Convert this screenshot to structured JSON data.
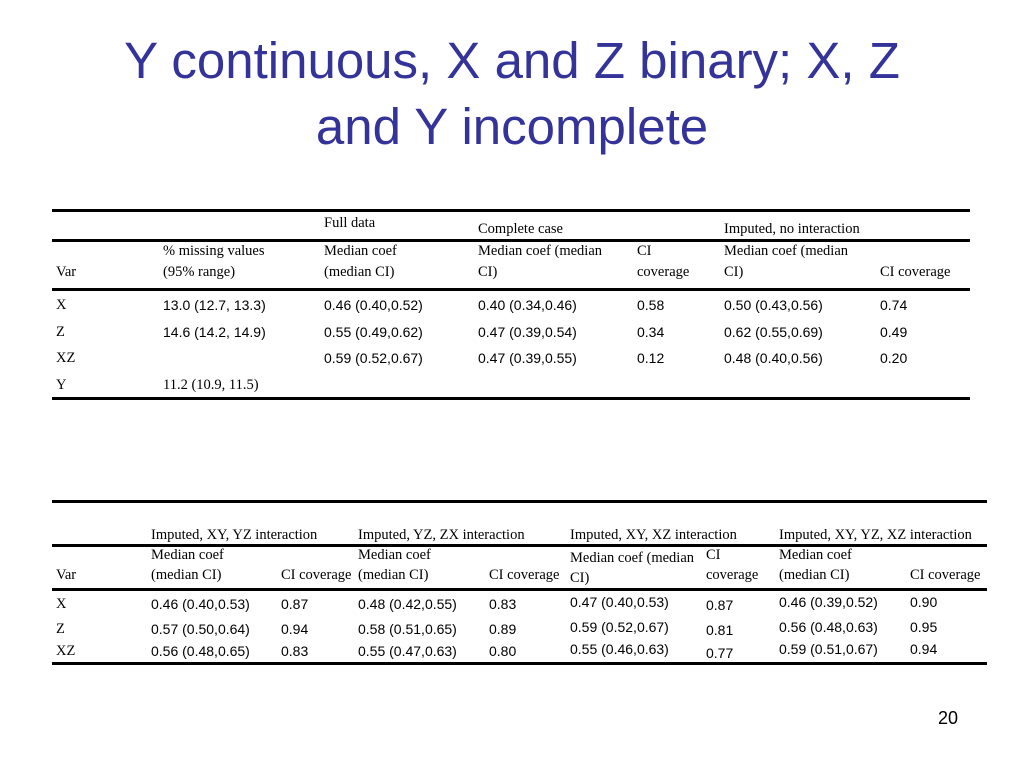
{
  "slide": {
    "title_line1": "Y continuous, X and Z binary; X, Z",
    "title_line2": "and Y incomplete",
    "page_number": "20",
    "title_color": "#333399"
  },
  "table1": {
    "group_headers": [
      "Full data",
      "Complete case",
      "Imputed, no interaction"
    ],
    "column_headers": [
      [
        "Var"
      ],
      [
        "% missing values",
        "(95% range)"
      ],
      [
        "Median coef",
        "(median CI)"
      ],
      [
        "Median coef (median",
        "CI)"
      ],
      [
        "CI",
        "coverage"
      ],
      [
        "Median coef (median",
        "CI)"
      ],
      [
        "CI  coverage"
      ]
    ],
    "rows": [
      [
        "X",
        "13.0 (12.7, 13.3)",
        "0.46 (0.40,0.52)",
        "0.40 (0.34,0.46)",
        "0.58",
        "0.50 (0.43,0.56)",
        "0.74"
      ],
      [
        "Z",
        "14.6 (14.2, 14.9)",
        "0.55 (0.49,0.62)",
        "0.47 (0.39,0.54)",
        "0.34",
        "0.62 (0.55,0.69)",
        "0.49"
      ],
      [
        "XZ",
        "",
        "0.59 (0.52,0.67)",
        "0.47 (0.39,0.55)",
        "0.12",
        "0.48 (0.40,0.56)",
        "0.20"
      ],
      [
        "Y",
        "11.2 (10.9, 11.5)",
        "",
        "",
        "",
        "",
        ""
      ]
    ]
  },
  "table2": {
    "group_headers": [
      "Imputed, XY, YZ interaction",
      "Imputed, YZ, ZX interaction",
      "Imputed, XY,  XZ interaction",
      "Imputed, XY, YZ, XZ interaction"
    ],
    "column_headers": [
      [
        "Var"
      ],
      [
        "Median coef",
        "(median CI)"
      ],
      [
        "CI coverage"
      ],
      [
        "Median coef",
        "(median CI)"
      ],
      [
        "CI coverage"
      ],
      [
        "Median coef (median",
        "CI)"
      ],
      [
        "CI",
        "coverage"
      ],
      [
        "Median coef",
        "(median CI)"
      ],
      [
        "CI coverage"
      ]
    ],
    "rows": [
      [
        "X",
        "0.46 (0.40,0.53)",
        "0.87",
        "0.48 (0.42,0.55)",
        "0.83",
        "0.47 (0.40,0.53)",
        "0.87",
        "0.46 (0.39,0.52)",
        "0.90"
      ],
      [
        "Z",
        "0.57 (0.50,0.64)",
        "0.94",
        "0.58 (0.51,0.65)",
        "0.89",
        "0.59 (0.52,0.67)",
        "0.81",
        "0.56 (0.48,0.63)",
        "0.95"
      ],
      [
        "XZ",
        "0.56 (0.48,0.65)",
        "0.83",
        "0.55 (0.47,0.63)",
        "0.80",
        "0.55 (0.46,0.63)",
        "0.77",
        "0.59 (0.51,0.67)",
        "0.94"
      ]
    ]
  }
}
